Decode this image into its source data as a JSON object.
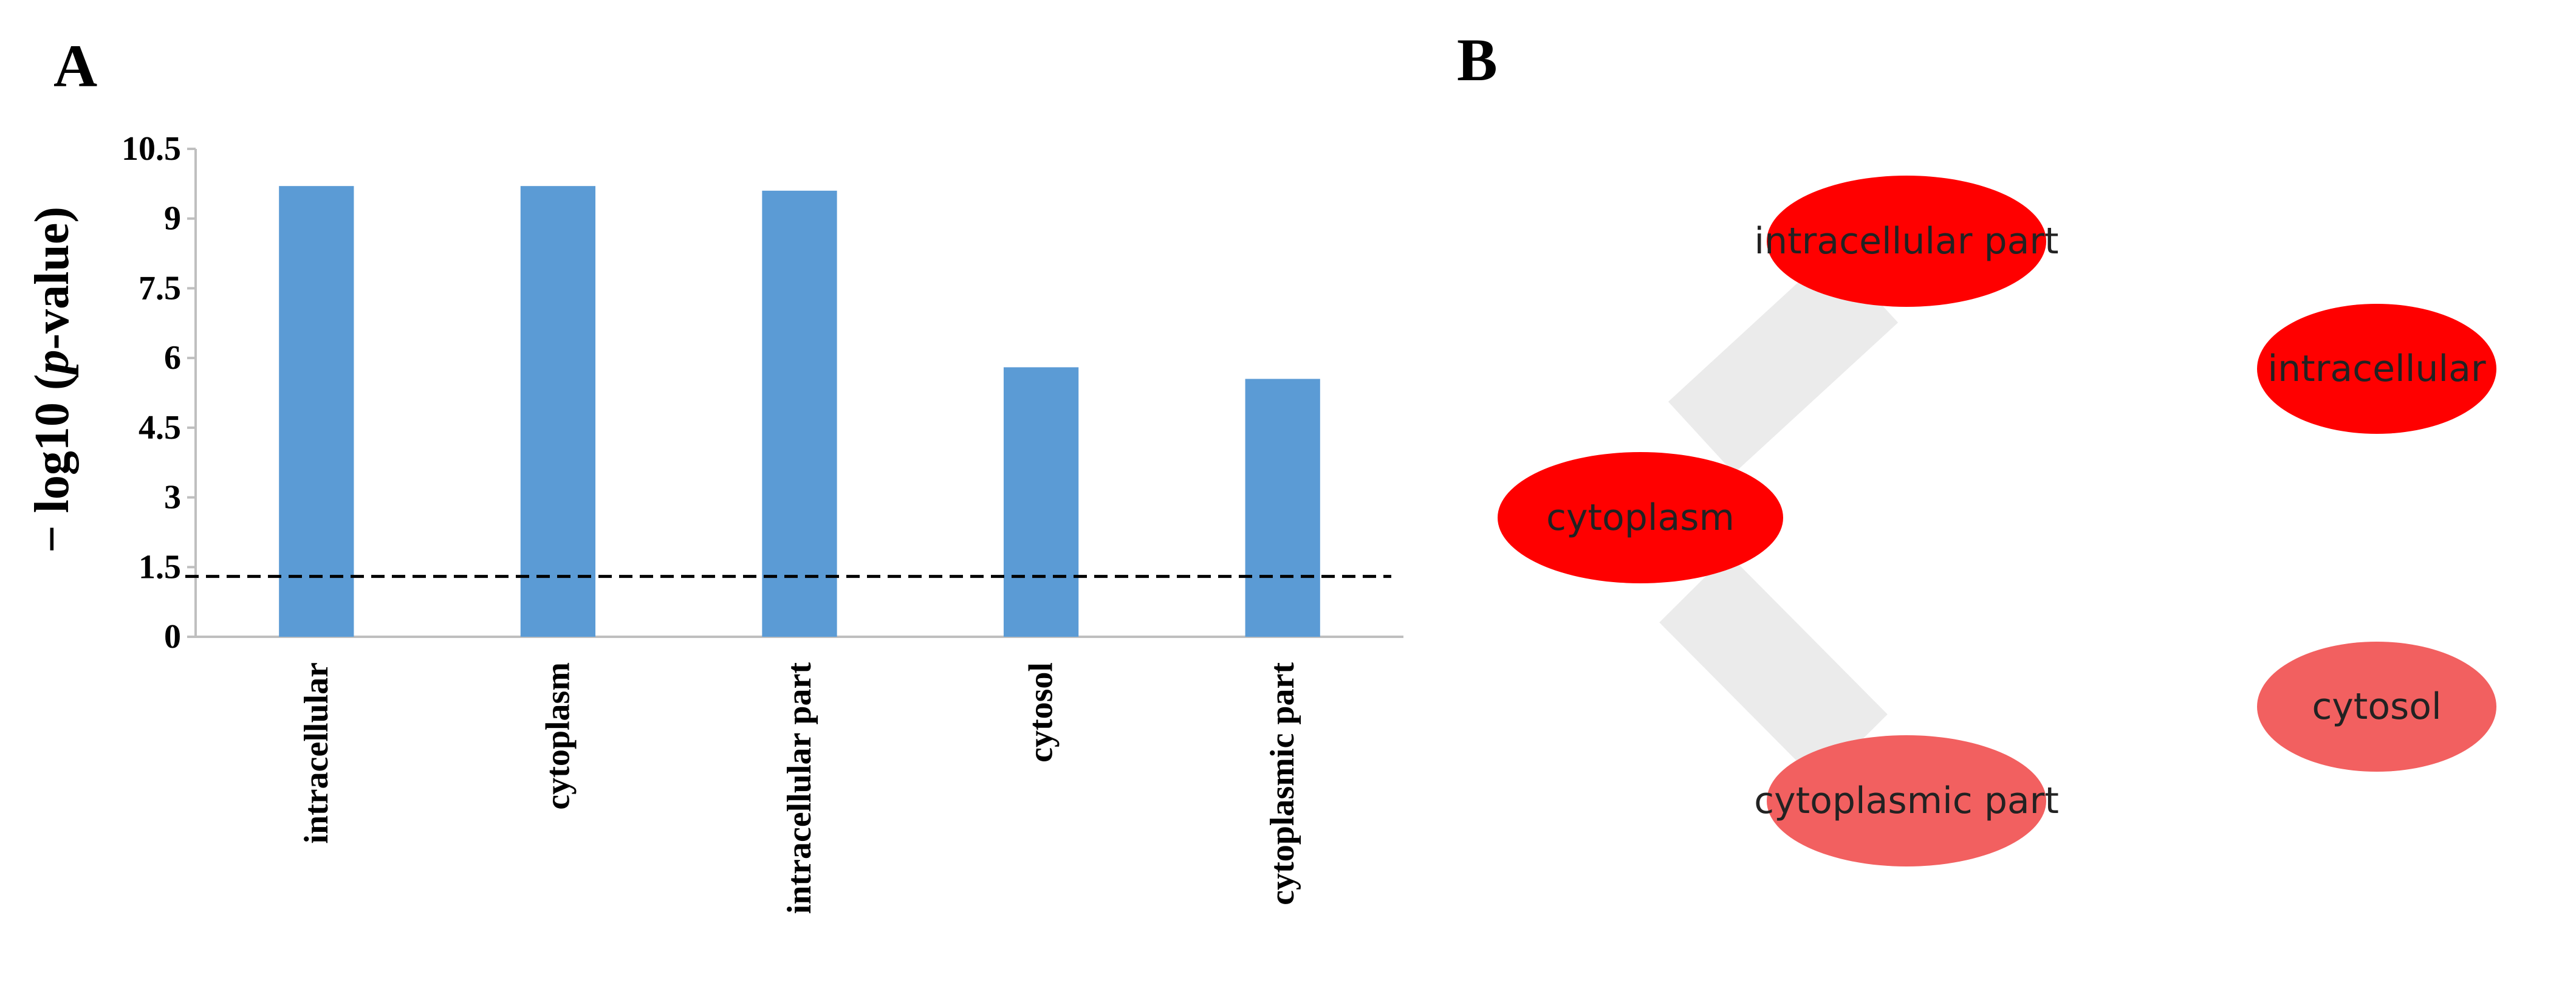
{
  "panel_a": {
    "letter": "A"
  },
  "panel_b": {
    "letter": "B"
  },
  "chart_data": {
    "type": "bar",
    "title": "",
    "xlabel": "",
    "ylabel_prefix": "− log10 (",
    "ylabel_italic": "p",
    "ylabel_suffix": "-value)",
    "categories": [
      "intracellular",
      "cytoplasm",
      "intracellular part",
      "cytosol",
      "cytoplasmic part"
    ],
    "values": [
      9.7,
      9.7,
      9.6,
      5.8,
      5.55
    ],
    "ylim": [
      0,
      10.5
    ],
    "yticks": [
      0,
      1.5,
      3,
      4.5,
      6,
      7.5,
      9,
      10.5
    ],
    "ytick_labels": [
      "0",
      "1.5",
      "3",
      "4.5",
      "6",
      "7.5",
      "9",
      "10.5"
    ],
    "threshold": 1.3,
    "threshold_style": "dashed",
    "bar_color": "#5b9bd5",
    "grid": false,
    "legend": "none"
  },
  "network": {
    "nodes": [
      {
        "id": "intracellular-part",
        "label": "intracellular part",
        "color": "#ff0000"
      },
      {
        "id": "intracellular",
        "label": "intracellular",
        "color": "#ff0000"
      },
      {
        "id": "cytoplasm",
        "label": "cytoplasm",
        "color": "#ff0000"
      },
      {
        "id": "cytosol",
        "label": "cytosol",
        "color": "#f26060"
      },
      {
        "id": "cytoplasmic-part",
        "label": "cytoplasmic part",
        "color": "#f26060"
      }
    ],
    "edges": [
      {
        "from": "cytoplasm",
        "to": "intracellular-part",
        "color": "#ebebeb"
      },
      {
        "from": "cytoplasm",
        "to": "cytoplasmic-part",
        "color": "#ebebeb"
      }
    ]
  }
}
